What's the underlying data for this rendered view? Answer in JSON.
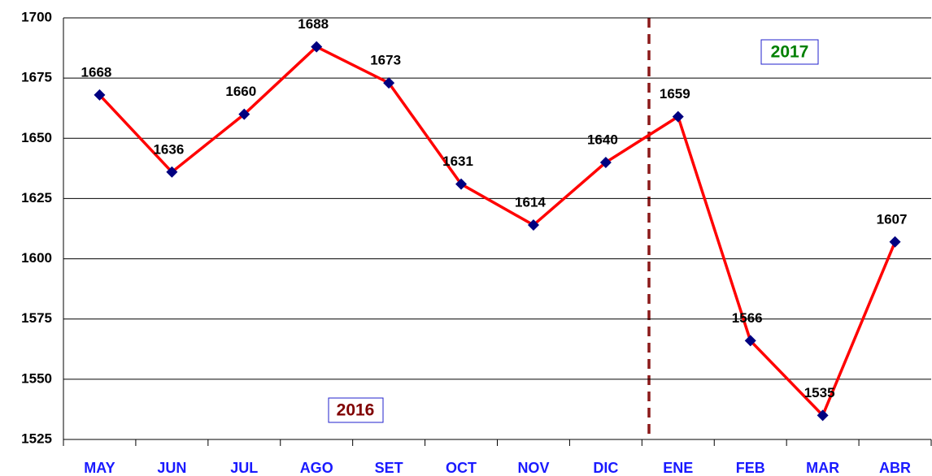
{
  "chart_data": {
    "type": "line",
    "categories": [
      "MAY",
      "JUN",
      "JUL",
      "AGO",
      "SET",
      "OCT",
      "NOV",
      "DIC",
      "ENE",
      "FEB",
      "MAR",
      "ABR"
    ],
    "series": [
      {
        "color": "#ff0000",
        "marker_color": "#000080",
        "values": [
          1668,
          1636,
          1660,
          1688,
          1673,
          1631,
          1614,
          1640,
          1659,
          1566,
          1535,
          1607
        ]
      }
    ],
    "ylim": [
      1525,
      1700
    ],
    "yticks": [
      1525,
      1550,
      1575,
      1600,
      1625,
      1650,
      1675,
      1700
    ],
    "grid": true,
    "annotations": [
      {
        "text": "2016",
        "color": "#800000"
      },
      {
        "text": "2017",
        "color": "#008000"
      }
    ]
  }
}
